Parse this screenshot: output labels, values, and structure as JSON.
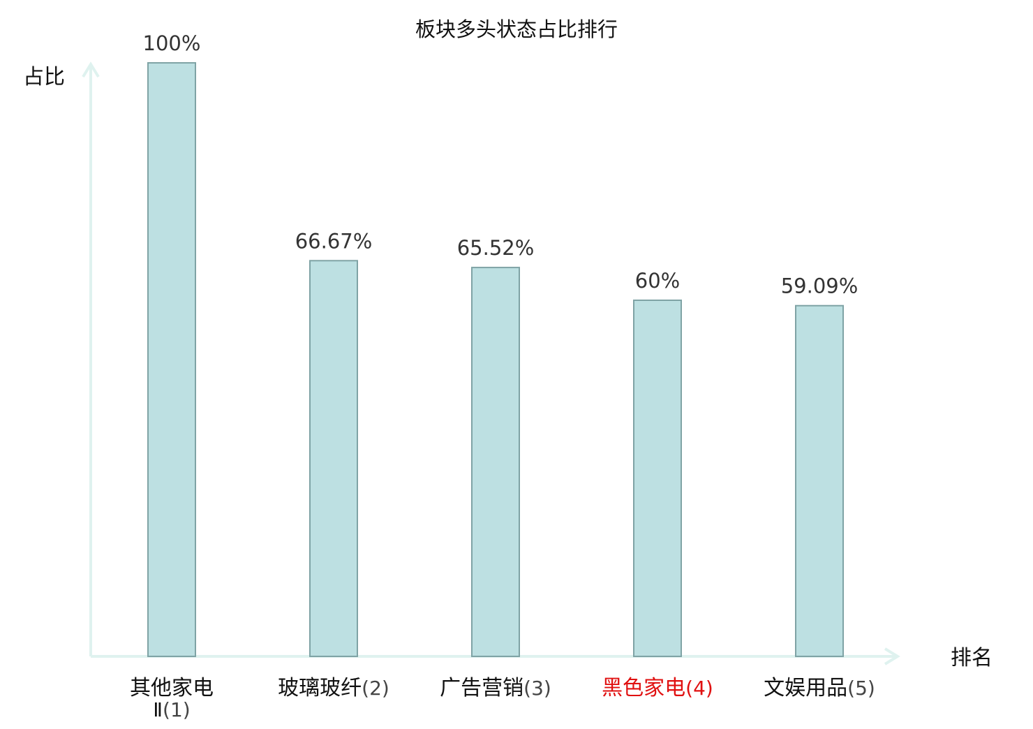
{
  "chart_data": {
    "type": "bar",
    "title": "板块多头状态占比排行",
    "ylabel": "占比",
    "xlabel": "排名",
    "ylim": [
      0,
      100
    ],
    "grid": false,
    "categories": [
      {
        "name": "其他家电Ⅱ",
        "rank": "(1)",
        "highlight": false
      },
      {
        "name": "玻璃玻纤",
        "rank": "(2)",
        "highlight": false
      },
      {
        "name": "广告营销",
        "rank": "(3)",
        "highlight": false
      },
      {
        "name": "黑色家电",
        "rank": "(4)",
        "highlight": true
      },
      {
        "name": "文娱用品",
        "rank": "(5)",
        "highlight": false
      }
    ],
    "values": [
      100,
      66.67,
      65.52,
      60,
      59.09
    ],
    "value_labels": [
      "100%",
      "66.67%",
      "65.52%",
      "60%",
      "59.09%"
    ]
  },
  "colors": {
    "bar_fill": "#bde0e2",
    "bar_stroke": "#7fa3a5",
    "axis": "#dff2ef",
    "title": "#111111",
    "value_label": "#333333",
    "category_name": "#111111",
    "category_rank": "#444444",
    "highlight": "#e01010"
  }
}
